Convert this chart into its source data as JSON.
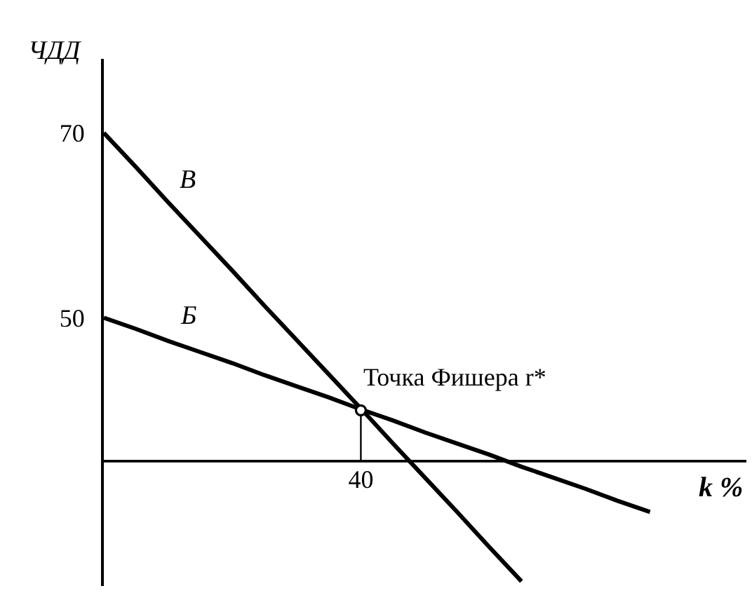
{
  "chart_data": {
    "type": "line",
    "xlabel": "k %",
    "ylabel": "ЧДД",
    "categories": [
      null,
      null,
      null,
      null,
      null,
      null,
      null,
      null,
      "40",
      null,
      null,
      null,
      null,
      null,
      null,
      null,
      null,
      null,
      null,
      null,
      null
    ],
    "annotations": [
      {
        "text": "Точка Фишера r*",
        "x": "40",
        "y": 40
      }
    ],
    "series": [
      {
        "name": "В",
        "color": "#000000",
        "values": [
          70,
          66.3,
          62.5,
          58.8,
          55.1,
          51.3,
          47.6,
          43.9,
          40.2,
          36.4,
          32.7,
          29,
          25.2,
          21.5,
          null,
          null,
          null,
          null,
          null,
          null,
          null
        ]
      },
      {
        "name": "Б",
        "color": "#000000",
        "values": [
          50,
          48.8,
          47.5,
          46.3,
          45.1,
          43.8,
          42.6,
          41.4,
          40.1,
          38.9,
          37.6,
          36.4,
          35.2,
          33.9,
          32.7,
          31.5,
          30.2,
          29,
          null,
          null,
          null
        ]
      },
      {
        "type": "line",
        "color": "#000000",
        "x": [
          "40",
          "40"
        ],
        "values": [
          40,
          34.5
        ]
      },
      {
        "type": "scatter",
        "color": "#000000",
        "values": [
          null,
          null,
          null,
          null,
          null,
          null,
          null,
          null,
          40,
          null,
          null,
          null,
          null,
          null,
          null,
          null,
          null,
          null,
          null,
          null,
          null
        ],
        "marker": "circle"
      }
    ],
    "ylim": [
      21,
      78
    ],
    "yticks": [
      50,
      70
    ],
    "ref_lines": [
      {
        "axis": "y",
        "value": 34.5,
        "color": "#000000"
      }
    ]
  }
}
